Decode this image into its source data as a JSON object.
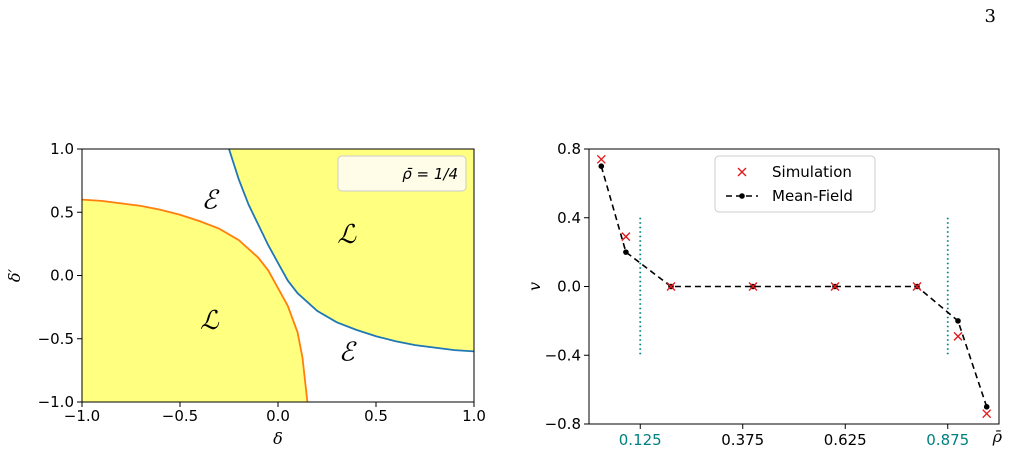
{
  "page_number": "3",
  "chart_data": [
    {
      "type": "area",
      "title": "",
      "xlabel": "δ",
      "ylabel": "δ′",
      "xlim": [
        -1.0,
        1.0
      ],
      "ylim": [
        -1.0,
        1.0
      ],
      "x_ticks": [
        "−1.0",
        "−0.5",
        "0.0",
        "0.5",
        "1.0"
      ],
      "y_ticks": [
        "1.0",
        "0.5",
        "0.0",
        "−0.5",
        "−1.0"
      ],
      "legend_text": "ρ̄ = 1/4",
      "legend_position": "top-right",
      "region_labels": [
        "ℰ",
        "ℒ",
        "ℒ",
        "ℰ"
      ],
      "fill_color": "#ffff80",
      "curves": [
        {
          "color": "#1f77b4",
          "description": "upper-right boundary",
          "points": [
            [
              -0.25,
              1.0
            ],
            [
              -0.2,
              0.76
            ],
            [
              -0.15,
              0.56
            ],
            [
              -0.1,
              0.4
            ],
            [
              -0.05,
              0.24
            ],
            [
              0.0,
              0.1
            ],
            [
              0.05,
              -0.04
            ],
            [
              0.1,
              -0.14
            ],
            [
              0.2,
              -0.28
            ],
            [
              0.3,
              -0.37
            ],
            [
              0.4,
              -0.43
            ],
            [
              0.5,
              -0.48
            ],
            [
              0.6,
              -0.52
            ],
            [
              0.7,
              -0.55
            ],
            [
              0.8,
              -0.57
            ],
            [
              0.9,
              -0.59
            ],
            [
              1.0,
              -0.6
            ]
          ]
        },
        {
          "color": "#ff7f0e",
          "description": "lower-left boundary",
          "points": [
            [
              -1.0,
              0.6
            ],
            [
              -0.9,
              0.59
            ],
            [
              -0.8,
              0.57
            ],
            [
              -0.7,
              0.55
            ],
            [
              -0.6,
              0.52
            ],
            [
              -0.5,
              0.48
            ],
            [
              -0.4,
              0.43
            ],
            [
              -0.3,
              0.37
            ],
            [
              -0.2,
              0.28
            ],
            [
              -0.1,
              0.14
            ],
            [
              -0.05,
              0.04
            ],
            [
              0.0,
              -0.1
            ],
            [
              0.05,
              -0.24
            ],
            [
              0.1,
              -0.45
            ],
            [
              0.125,
              -0.65
            ],
            [
              0.15,
              -1.0
            ]
          ]
        }
      ]
    },
    {
      "type": "line",
      "title": "",
      "xlabel": "ρ̄",
      "ylabel": "v",
      "xlim": [
        0.0,
        1.0
      ],
      "ylim": [
        -0.8,
        0.8
      ],
      "x_ticks": [
        "0.125",
        "0.375",
        "0.625",
        "0.875"
      ],
      "x_tick_values": [
        0.125,
        0.375,
        0.625,
        0.875
      ],
      "x_tick_colors": [
        "#008080",
        "#000000",
        "#000000",
        "#008080"
      ],
      "y_ticks": [
        "0.8",
        "0.4",
        "0.0",
        "−0.4",
        "−0.8"
      ],
      "y_tick_values": [
        0.8,
        0.4,
        0.0,
        -0.4,
        -0.8
      ],
      "legend_position": "top-center",
      "vlines": [
        {
          "x": 0.125,
          "ymin": -0.4,
          "ymax": 0.4,
          "color": "#008080",
          "style": "dotted"
        },
        {
          "x": 0.875,
          "ymin": -0.4,
          "ymax": 0.4,
          "color": "#008080",
          "style": "dotted"
        }
      ],
      "series": [
        {
          "name": "Simulation",
          "marker": "x",
          "color": "#e31a1c",
          "x": [
            0.03,
            0.09,
            0.2,
            0.4,
            0.6,
            0.8,
            0.9,
            0.97
          ],
          "y": [
            0.74,
            0.29,
            0.0,
            0.0,
            0.0,
            0.0,
            -0.29,
            -0.74
          ]
        },
        {
          "name": "Mean-Field",
          "marker": "dot",
          "style": "dashed",
          "color": "#000000",
          "x": [
            0.03,
            0.09,
            0.2,
            0.4,
            0.6,
            0.8,
            0.9,
            0.97
          ],
          "y": [
            0.7,
            0.2,
            0.0,
            0.0,
            0.0,
            0.0,
            -0.2,
            -0.7
          ]
        }
      ]
    }
  ]
}
